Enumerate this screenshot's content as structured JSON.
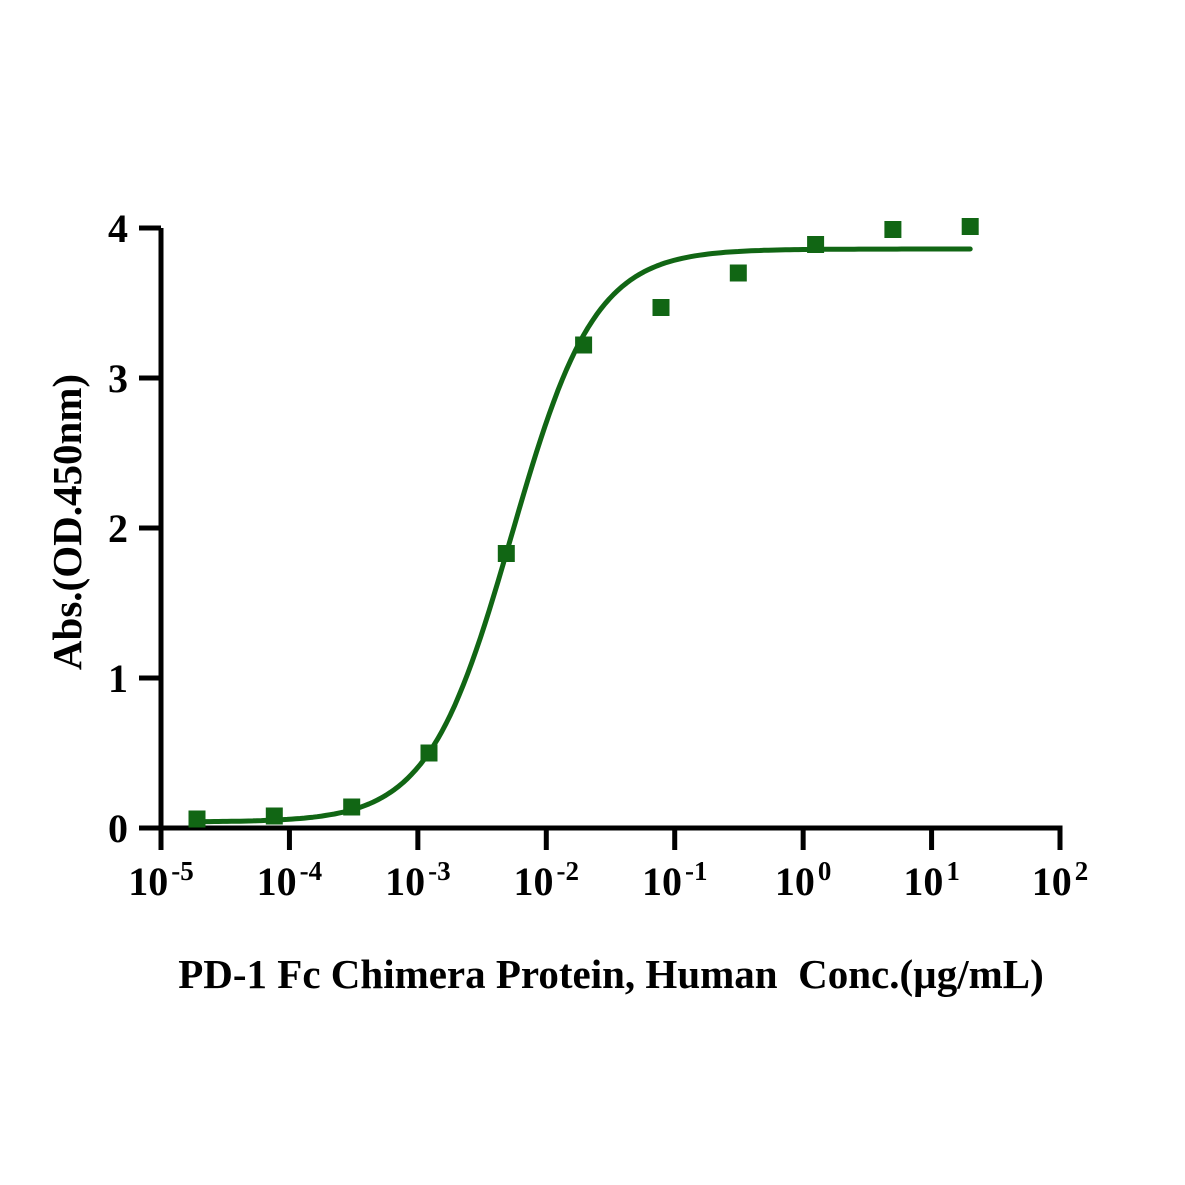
{
  "figure": {
    "background": "#ffffff"
  },
  "chart_data": {
    "type": "scatter",
    "subtype": "dose-response-sigmoidal",
    "xlabel": "PD-1 Fc Chimera Protein, Human  Conc.(µg/mL)",
    "ylabel": "Abs.(OD.450nm)",
    "x_scale": "log10",
    "xlim_log10": [
      -5,
      2
    ],
    "ylim": [
      0,
      4
    ],
    "x_tick_exponents": [
      -5,
      -4,
      -3,
      -2,
      -1,
      0,
      1,
      2
    ],
    "y_ticks": [
      0,
      1,
      2,
      3,
      4
    ],
    "grid": false,
    "legend": false,
    "axis_color": "#000000",
    "series": [
      {
        "marker": "square",
        "color": "#116614",
        "x": [
          1.907e-05,
          7.629e-05,
          0.0003052,
          0.001221,
          0.004883,
          0.01953,
          0.07813,
          0.3125,
          1.25,
          5,
          20
        ],
        "y": [
          0.06,
          0.08,
          0.14,
          0.5,
          1.83,
          3.22,
          3.47,
          3.7,
          3.89,
          3.99,
          4.01
        ]
      }
    ],
    "fit_curve": {
      "model": "4PL",
      "bottom": 0.04,
      "top": 3.86,
      "ec50": 0.00536,
      "hill": 1.34,
      "x_start": 1.907e-05,
      "x_end": 20,
      "color": "#116614"
    }
  }
}
